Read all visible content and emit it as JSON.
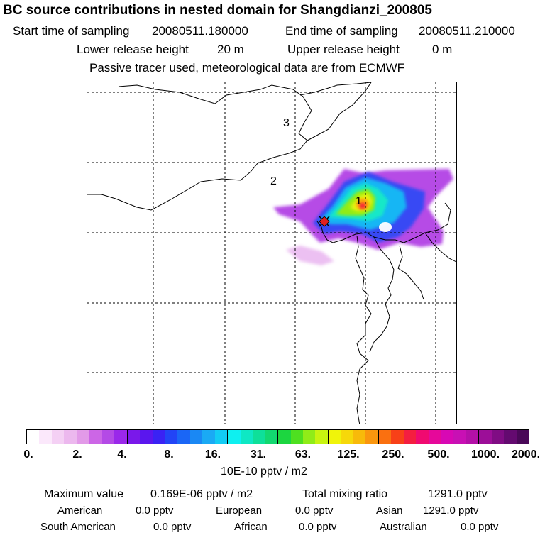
{
  "header": {
    "title": "BC  source contributions in nested domain for Shangdianzi_200805",
    "start_label": "Start time of sampling",
    "start_value": "20080511.180000",
    "end_label": "End time of sampling",
    "end_value": "20080511.210000",
    "lower_label": "Lower release height",
    "lower_value": "20 m",
    "upper_label": "Upper release height",
    "upper_value": "0 m",
    "note": "Passive tracer used, meteorological data are from ECMWF"
  },
  "map": {
    "labels": [
      "1",
      "2",
      "3"
    ]
  },
  "colorbar": {
    "ticks": [
      "0.",
      "2.",
      "4.",
      "8.",
      "16.",
      "31.",
      "63.",
      "125.",
      "250.",
      "500.",
      "1000.",
      "2000."
    ],
    "unit": "10E-10 pptv / m2",
    "colors": [
      "#ffffff",
      "#fbe8fb",
      "#f4d0f4",
      "#ecb8ee",
      "#e29ae8",
      "#cc66e6",
      "#b44ae6",
      "#9a28ea",
      "#7a18ea",
      "#5a16ee",
      "#3a22f4",
      "#2244f6",
      "#1a66f6",
      "#1a88f4",
      "#1aaaf4",
      "#12ccf4",
      "#0ef0f0",
      "#0ee8c4",
      "#0ee09a",
      "#12d870",
      "#1cd640",
      "#4ee020",
      "#90ec18",
      "#c8f410",
      "#f0f40a",
      "#f6d80a",
      "#f8ba0a",
      "#fa960e",
      "#fa7010",
      "#f84018",
      "#f41e40",
      "#f00a70",
      "#e6089a",
      "#d808b4",
      "#c810b4",
      "#b410a8",
      "#9c0e98",
      "#800c84",
      "#640a70",
      "#4a0858"
    ]
  },
  "stats": {
    "max_label": "Maximum value",
    "max_value": "0.169E-06 pptv / m2",
    "total_label": "Total mixing ratio",
    "total_value": "1291.0 pptv",
    "regions": [
      {
        "name": "American",
        "value": "0.0 pptv"
      },
      {
        "name": "European",
        "value": "0.0 pptv"
      },
      {
        "name": "Asian",
        "value": "1291.0 pptv"
      },
      {
        "name": "South American",
        "value": "0.0 pptv"
      },
      {
        "name": "African",
        "value": "0.0 pptv"
      },
      {
        "name": "Australian",
        "value": "0.0 pptv"
      }
    ]
  }
}
